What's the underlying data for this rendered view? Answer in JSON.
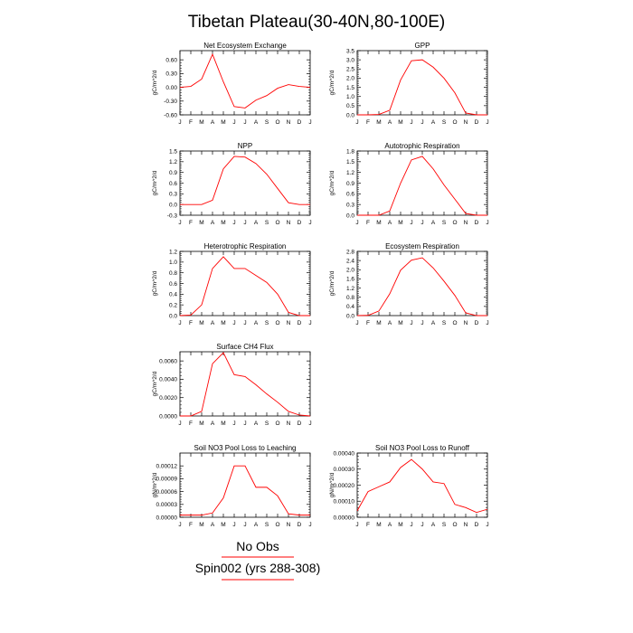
{
  "title": "Tibetan Plateau(30-40N,80-100E)",
  "months": [
    "J",
    "F",
    "M",
    "A",
    "M",
    "J",
    "J",
    "A",
    "S",
    "O",
    "N",
    "D",
    "J"
  ],
  "colors": {
    "series": "#ff0000",
    "axis": "#000000",
    "legend_line_obs": "#ff0000",
    "legend_line_model": "#ff0000"
  },
  "legend": {
    "obs": "No Obs",
    "model": "Spin002 (yrs 288-308)"
  },
  "chart_data": [
    {
      "type": "line",
      "title": "Net Ecosystem Exchange",
      "ylabel": "gC/m^2/d",
      "ylim": [
        -0.6,
        0.8
      ],
      "yticks": [
        -0.6,
        -0.3,
        0.0,
        0.3,
        0.6
      ],
      "yticklabels": [
        "-0.60",
        "-0.30",
        "0.00",
        "0.30",
        "0.60"
      ],
      "values": [
        0.0,
        0.02,
        0.18,
        0.72,
        0.12,
        -0.42,
        -0.45,
        -0.28,
        -0.18,
        -0.02,
        0.06,
        0.02,
        0.0
      ]
    },
    {
      "type": "line",
      "title": "GPP",
      "ylabel": "gC/m^2/d",
      "ylim": [
        0,
        3.5
      ],
      "yticks": [
        0,
        0.5,
        1.0,
        1.5,
        2.0,
        2.5,
        3.0,
        3.5
      ],
      "yticklabels": [
        "0.0",
        "0.5",
        "1.0",
        "1.5",
        "2.0",
        "2.5",
        "3.0",
        "3.5"
      ],
      "values": [
        0.0,
        0.0,
        0.02,
        0.25,
        1.9,
        2.95,
        3.0,
        2.6,
        2.0,
        1.2,
        0.1,
        0.0,
        0.0
      ]
    },
    {
      "type": "line",
      "title": "NPP",
      "ylabel": "gC/m^2/d",
      "ylim": [
        -0.3,
        1.5
      ],
      "yticks": [
        -0.3,
        0.0,
        0.3,
        0.6,
        0.9,
        1.2,
        1.5
      ],
      "yticklabels": [
        "-0.3",
        "0.0",
        "0.3",
        "0.6",
        "0.9",
        "1.2",
        "1.5"
      ],
      "values": [
        0.0,
        0.0,
        0.0,
        0.12,
        1.0,
        1.35,
        1.33,
        1.15,
        0.85,
        0.45,
        0.05,
        0.0,
        0.0
      ]
    },
    {
      "type": "line",
      "title": "Autotrophic Respiration",
      "ylabel": "gC/m^2/d",
      "ylim": [
        0,
        1.8
      ],
      "yticks": [
        0,
        0.3,
        0.6,
        0.9,
        1.2,
        1.5,
        1.8
      ],
      "yticklabels": [
        "0.0",
        "0.3",
        "0.6",
        "0.9",
        "1.2",
        "1.5",
        "1.8"
      ],
      "values": [
        0.0,
        0.0,
        0.0,
        0.12,
        0.9,
        1.55,
        1.65,
        1.3,
        0.85,
        0.45,
        0.05,
        0.0,
        0.0
      ]
    },
    {
      "type": "line",
      "title": "Heterotrophic Respiration",
      "ylabel": "gC/m^2/d",
      "ylim": [
        0,
        1.2
      ],
      "yticks": [
        0,
        0.2,
        0.4,
        0.6,
        0.8,
        1.0,
        1.2
      ],
      "yticklabels": [
        "0.0",
        "0.2",
        "0.4",
        "0.6",
        "0.8",
        "1.0",
        "1.2"
      ],
      "values": [
        0.0,
        0.01,
        0.2,
        0.88,
        1.1,
        0.88,
        0.88,
        0.75,
        0.62,
        0.4,
        0.06,
        0.0,
        0.0
      ]
    },
    {
      "type": "line",
      "title": "Ecosystem Respiration",
      "ylabel": "gC/m^2/d",
      "ylim": [
        0,
        2.8
      ],
      "yticks": [
        0,
        0.4,
        0.8,
        1.2,
        1.6,
        2.0,
        2.4,
        2.8
      ],
      "yticklabels": [
        "0.0",
        "0.4",
        "0.8",
        "1.2",
        "1.6",
        "2.0",
        "2.4",
        "2.8"
      ],
      "values": [
        0.0,
        0.01,
        0.2,
        0.95,
        1.98,
        2.42,
        2.52,
        2.08,
        1.5,
        0.88,
        0.12,
        0.0,
        0.0
      ]
    },
    {
      "type": "line",
      "title": "Surface CH4 Flux",
      "ylabel": "gC/m^2/d",
      "ylim": [
        0,
        0.007
      ],
      "yticks": [
        0,
        0.002,
        0.004,
        0.006
      ],
      "yticklabels": [
        "0.0000",
        "0.0020",
        "0.0040",
        "0.0060"
      ],
      "values": [
        0.0,
        0.0,
        0.0005,
        0.0057,
        0.0069,
        0.0045,
        0.0043,
        0.0034,
        0.0024,
        0.0015,
        0.0005,
        0.0001,
        0.0
      ]
    },
    null,
    {
      "type": "line",
      "title": "Soil NO3 Pool Loss to Leaching",
      "ylabel": "gN/m^2/d",
      "ylim": [
        0,
        0.00015
      ],
      "yticks": [
        0,
        3e-05,
        6e-05,
        9e-05,
        0.00012
      ],
      "yticklabels": [
        "0.00000",
        "0.00003",
        "0.00006",
        "0.00009",
        "0.00012"
      ],
      "values": [
        5e-06,
        5e-06,
        5e-06,
        1e-05,
        4.5e-05,
        0.00012,
        0.00012,
        7e-05,
        7e-05,
        5e-05,
        8e-06,
        5e-06,
        5e-06
      ]
    },
    {
      "type": "line",
      "title": "Soil NO3 Pool Loss to Runoff",
      "ylabel": "gN/m^2/d",
      "ylim": [
        0,
        0.0004
      ],
      "yticks": [
        0,
        0.0001,
        0.0002,
        0.0003,
        0.0004
      ],
      "yticklabels": [
        "0.00000",
        "0.00010",
        "0.00020",
        "0.00030",
        "0.00040"
      ],
      "values": [
        4e-05,
        0.00016,
        0.00019,
        0.00022,
        0.00031,
        0.00036,
        0.0003,
        0.00022,
        0.00021,
        8e-05,
        6e-05,
        3e-05,
        5e-05
      ]
    }
  ]
}
